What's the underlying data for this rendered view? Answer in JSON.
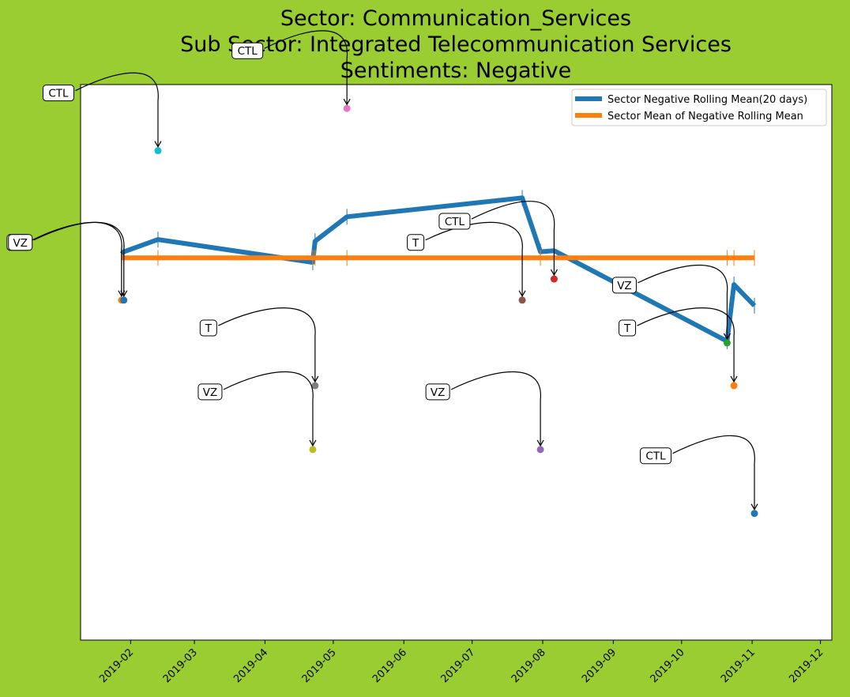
{
  "chart_data": {
    "type": "line",
    "title_lines": [
      "Sector:  Communication_Services",
      "Sub Sector:  Integrated Telecommunication Services",
      "Sentiments:  Negative"
    ],
    "xlabel": "",
    "ylabel": "",
    "x_ticks": [
      "2019-02",
      "2019-03",
      "2019-04",
      "2019-05",
      "2019-06",
      "2019-07",
      "2019-08",
      "2019-09",
      "2019-10",
      "2019-11",
      "2019-12"
    ],
    "xlim": [
      "2019-01-10",
      "2019-12-06"
    ],
    "ylim": [
      0,
      1
    ],
    "y_ticks_shown": false,
    "grid": false,
    "legend": {
      "placement": "top-right",
      "entries": [
        {
          "label": "Sector Negative Rolling Mean(20 days)",
          "color": "#1f77b4"
        },
        {
          "label": "Sector Mean of Negative Rolling Mean",
          "color": "#ff7f0e"
        }
      ]
    },
    "series": [
      {
        "name": "Sector Negative Rolling Mean(20 days)",
        "color": "#1f77b4",
        "x": [
          "2019-01-28",
          "2019-01-29",
          "2019-02-13",
          "2019-04-22",
          "2019-04-23",
          "2019-05-07",
          "2019-07-23",
          "2019-07-31",
          "2019-08-06",
          "2019-10-21",
          "2019-10-24",
          "2019-11-02"
        ],
        "y": [
          0.695,
          0.699,
          0.721,
          0.68,
          0.718,
          0.762,
          0.796,
          0.699,
          0.701,
          0.538,
          0.64,
          0.602
        ]
      },
      {
        "name": "Sector Mean of Negative Rolling Mean",
        "color": "#ff7f0e",
        "x": [
          "2019-01-28",
          "2019-01-29",
          "2019-02-13",
          "2019-04-22",
          "2019-04-23",
          "2019-05-07",
          "2019-07-23",
          "2019-07-31",
          "2019-08-06",
          "2019-10-21",
          "2019-10-24",
          "2019-11-02"
        ],
        "y": [
          0.688,
          0.688,
          0.688,
          0.688,
          0.688,
          0.688,
          0.688,
          0.688,
          0.688,
          0.688,
          0.688,
          0.688
        ]
      }
    ],
    "points": [
      {
        "label": "VZ",
        "x": "2019-01-28",
        "y": 0.612,
        "color": "#ff7f0e"
      },
      {
        "label": "VZ",
        "x": "2019-01-29",
        "y": 0.612,
        "color": "#1f77b4"
      },
      {
        "label": "CTL",
        "x": "2019-02-13",
        "y": 0.881,
        "color": "#17becf"
      },
      {
        "label": "T",
        "x": "2019-04-23",
        "y": 0.458,
        "color": "#7f7f7f"
      },
      {
        "label": "VZ",
        "x": "2019-04-22",
        "y": 0.343,
        "color": "#bcbd22"
      },
      {
        "label": "CTL",
        "x": "2019-05-07",
        "y": 0.957,
        "color": "#e377c2"
      },
      {
        "label": "T",
        "x": "2019-07-23",
        "y": 0.612,
        "color": "#8c564b"
      },
      {
        "label": "VZ",
        "x": "2019-07-31",
        "y": 0.343,
        "color": "#9467bd"
      },
      {
        "label": "CTL",
        "x": "2019-08-06",
        "y": 0.65,
        "color": "#d62728"
      },
      {
        "label": "VZ",
        "x": "2019-10-21",
        "y": 0.535,
        "color": "#2ca02c"
      },
      {
        "label": "T",
        "x": "2019-10-24",
        "y": 0.458,
        "color": "#ff7f0e"
      },
      {
        "label": "CTL",
        "x": "2019-11-02",
        "y": 0.228,
        "color": "#1f77b4"
      }
    ]
  }
}
